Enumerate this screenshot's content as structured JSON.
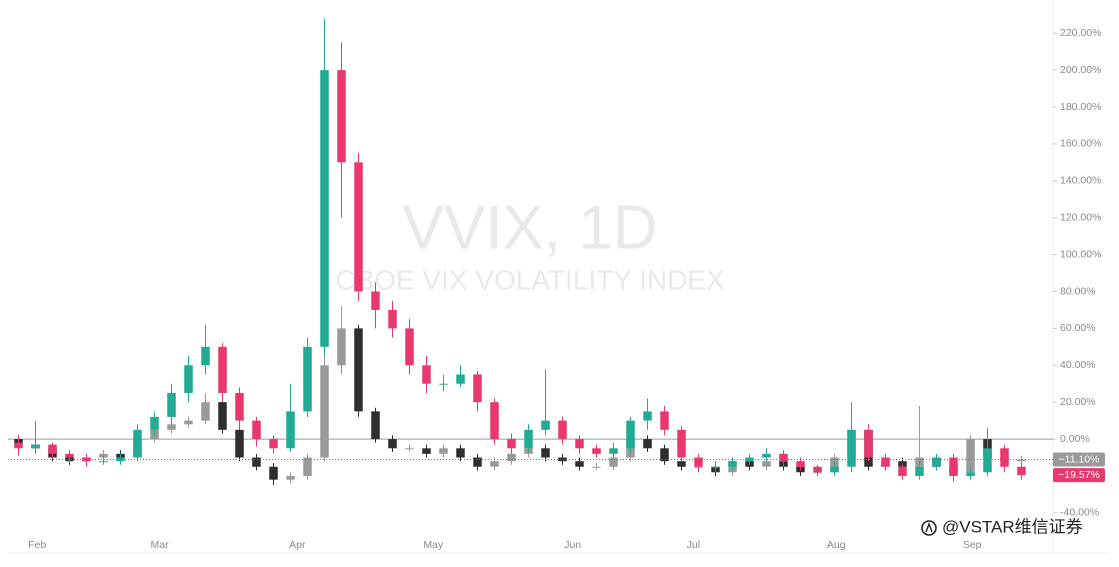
{
  "chart_data": {
    "type": "candlestick",
    "watermark_title": "VVIX, 1D",
    "watermark_subtitle": "CBOE VIX VOLATILITY INDEX",
    "footer": "@VSTAR维信证券",
    "ylim": [
      -52,
      238
    ],
    "yticks": [
      {
        "value": -40,
        "label": "-40.00%"
      },
      {
        "value": -20,
        "label": "-20.00%"
      },
      {
        "value": 0,
        "label": "0.00%"
      },
      {
        "value": 20,
        "label": "20.00%"
      },
      {
        "value": 40,
        "label": "40.00%"
      },
      {
        "value": 60,
        "label": "60.00%"
      },
      {
        "value": 80,
        "label": "80.00%"
      },
      {
        "value": 100,
        "label": "100.00%"
      },
      {
        "value": 120,
        "label": "120.00%"
      },
      {
        "value": 140,
        "label": "140.00%"
      },
      {
        "value": 160,
        "label": "160.00%"
      },
      {
        "value": 180,
        "label": "180.00%"
      },
      {
        "value": 200,
        "label": "200.00%"
      },
      {
        "value": 220,
        "label": "220.00%"
      }
    ],
    "xlim": [
      -0.5,
      59.5
    ],
    "xticks": [
      {
        "value": 1.1,
        "label": "Feb"
      },
      {
        "value": 8.3,
        "label": "Mar"
      },
      {
        "value": 16.4,
        "label": "Apr"
      },
      {
        "value": 24.4,
        "label": "May"
      },
      {
        "value": 32.6,
        "label": "Jun"
      },
      {
        "value": 39.7,
        "label": "Jul"
      },
      {
        "value": 48.1,
        "label": "Aug"
      },
      {
        "value": 56.1,
        "label": "Sep"
      }
    ],
    "series": [
      {
        "up_color": "#9a9a9a",
        "down_color": "#2e2e2e",
        "last_label": "−11.10%",
        "open": [
          0,
          -3,
          -5,
          -10,
          -12,
          -10,
          -8,
          -10,
          0,
          5,
          8,
          10,
          20,
          5,
          -10,
          -15,
          -22,
          -20,
          -10,
          40,
          60,
          15,
          0,
          -5,
          -5,
          -8,
          -5,
          -10,
          -15,
          -12,
          -8,
          -5,
          -10,
          -12,
          -15,
          -15,
          -10,
          0,
          -5,
          -12,
          -15,
          -15,
          -18,
          -12,
          -15,
          -12,
          -15,
          -18,
          -18,
          -10,
          5,
          -15,
          -12,
          -15,
          -10,
          -15,
          -18,
          0,
          -10,
          -12
        ],
        "high": [
          2,
          -1,
          -3,
          -8,
          -8,
          -6,
          -6,
          2,
          7,
          10,
          12,
          25,
          22,
          7,
          -8,
          -13,
          -18,
          -8,
          45,
          72,
          62,
          17,
          2,
          -3,
          -3,
          -3,
          -3,
          -8,
          -10,
          -6,
          -3,
          -3,
          -8,
          -10,
          -13,
          -8,
          2,
          2,
          -3,
          -10,
          -13,
          -13,
          -10,
          -10,
          -10,
          -10,
          -13,
          -16,
          -8,
          7,
          7,
          -10,
          -10,
          18,
          -8,
          -13,
          2,
          5,
          -8,
          -9
        ],
        "low": [
          -5,
          -7,
          -12,
          -14,
          -14,
          -12,
          -12,
          -12,
          -2,
          3,
          6,
          8,
          3,
          -12,
          -17,
          -25,
          -24,
          -22,
          -12,
          35,
          12,
          -2,
          -7,
          -7,
          -10,
          -10,
          -12,
          -17,
          -17,
          -14,
          -10,
          -12,
          -14,
          -17,
          -17,
          -17,
          -12,
          -7,
          -14,
          -17,
          -17,
          -20,
          -20,
          -17,
          -17,
          -17,
          -20,
          -20,
          -20,
          -12,
          -17,
          -17,
          -17,
          -17,
          -17,
          -20,
          -20,
          -12,
          -14,
          -14
        ],
        "close": [
          -3,
          -5,
          -10,
          -12,
          -10,
          -8,
          -10,
          0,
          5,
          8,
          10,
          20,
          5,
          -10,
          -15,
          -22,
          -20,
          -10,
          40,
          60,
          15,
          0,
          -5,
          -5,
          -8,
          -5,
          -10,
          -15,
          -12,
          -8,
          -5,
          -10,
          -12,
          -15,
          -15,
          -10,
          0,
          -5,
          -12,
          -15,
          -15,
          -18,
          -12,
          -15,
          -12,
          -15,
          -18,
          -18,
          -10,
          5,
          -15,
          -12,
          -15,
          -10,
          -15,
          -18,
          0,
          -10,
          -12,
          -11.1
        ]
      },
      {
        "up_color": "#22ab94",
        "down_color": "#e8386d",
        "last_label": "−19.57%",
        "open": [
          -2,
          -5,
          -3,
          -8,
          -10,
          -12,
          -12,
          -10,
          5,
          12,
          25,
          40,
          50,
          25,
          10,
          0,
          -5,
          15,
          50,
          200,
          150,
          80,
          70,
          60,
          40,
          30,
          30,
          35,
          20,
          0,
          -5,
          5,
          10,
          0,
          -5,
          -8,
          -5,
          10,
          15,
          5,
          -10,
          -15,
          -15,
          -12,
          -10,
          -8,
          -12,
          -15,
          -18,
          -15,
          5,
          -10,
          -15,
          -20,
          -15,
          -10,
          -20,
          -18,
          -5,
          -15
        ],
        "high": [
          2,
          10,
          -2,
          -6,
          -8,
          -9,
          -8,
          8,
          15,
          30,
          45,
          62,
          52,
          28,
          12,
          2,
          30,
          55,
          228,
          215,
          155,
          85,
          75,
          65,
          45,
          35,
          40,
          37,
          22,
          3,
          8,
          38,
          12,
          2,
          -3,
          -2,
          12,
          22,
          18,
          7,
          -8,
          -12,
          -10,
          -8,
          -5,
          -6,
          -10,
          -14,
          -12,
          20,
          8,
          -8,
          -13,
          -12,
          -8,
          -8,
          -15,
          6,
          -3,
          -13
        ],
        "low": [
          -9,
          -8,
          -10,
          -13,
          -15,
          -14,
          -14,
          -12,
          2,
          8,
          20,
          35,
          20,
          5,
          -4,
          -8,
          -7,
          12,
          45,
          120,
          75,
          60,
          55,
          35,
          25,
          26,
          28,
          15,
          -3,
          -8,
          -7,
          2,
          -3,
          -8,
          -10,
          -10,
          -8,
          5,
          2,
          -12,
          -18,
          -18,
          -17,
          -14,
          -12,
          -15,
          -17,
          -20,
          -20,
          -18,
          -12,
          -17,
          -22,
          -22,
          -17,
          -23,
          -22,
          -20,
          -18,
          -22
        ],
        "close": [
          -5,
          -3,
          -8,
          -10,
          -12,
          -12,
          -10,
          5,
          12,
          25,
          40,
          50,
          25,
          10,
          0,
          -5,
          15,
          50,
          200,
          150,
          80,
          70,
          60,
          40,
          30,
          30,
          35,
          20,
          0,
          -5,
          5,
          10,
          0,
          -5,
          -8,
          -5,
          10,
          15,
          5,
          -10,
          -15,
          -15,
          -12,
          -10,
          -8,
          -12,
          -15,
          -18,
          -15,
          5,
          -10,
          -15,
          -20,
          -15,
          -10,
          -20,
          -18,
          -5,
          -15,
          -19.57
        ]
      }
    ]
  }
}
